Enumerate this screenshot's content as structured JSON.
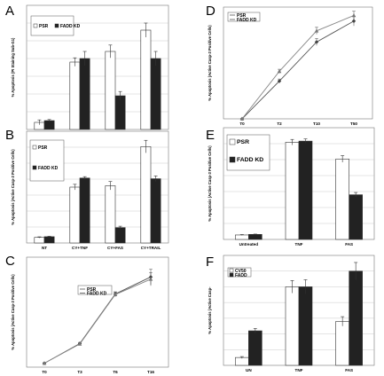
{
  "chart_data": [
    {
      "panel": "A",
      "type": "bar",
      "title": "",
      "ylabel": "% Apoptosis (PI Staining Sub-G1)",
      "xlabel": "",
      "ylim": [
        0,
        35
      ],
      "yticks": [],
      "categories": [
        "NT",
        "CY+TNF",
        "CY+FAS",
        "CY+TRAIL"
      ],
      "series": [
        {
          "name": "PSR",
          "values": [
            2.0,
            19.0,
            22.0,
            28.0
          ],
          "errors": [
            0.7,
            1.2,
            1.8,
            2.0
          ],
          "color": "#ffffff"
        },
        {
          "name": "FADD KD",
          "values": [
            2.5,
            20.0,
            9.5,
            20.0
          ],
          "errors": [
            0.3,
            2.0,
            1.2,
            2.0
          ],
          "color": "#222222"
        }
      ],
      "grid": true,
      "legend": "top-left",
      "legend_entries": [
        "PSR",
        "FADD KD"
      ]
    },
    {
      "panel": "B",
      "type": "bar",
      "title": "",
      "ylabel": "% Apoptosis (Active Casp-3 Positive Cells)",
      "xlabel": "",
      "ylim": [
        0,
        80
      ],
      "yticks": [],
      "categories": [
        "NT",
        "CY+TNF",
        "CY+FAS",
        "CY+TRAIL"
      ],
      "series": [
        {
          "name": "PSR",
          "values": [
            4,
            40,
            41,
            69
          ],
          "errors": [
            0.4,
            2.0,
            3.0,
            4.5
          ],
          "color": "#ffffff"
        },
        {
          "name": "FADD KD",
          "values": [
            4.5,
            46.5,
            11,
            46
          ],
          "errors": [
            0.3,
            1.0,
            1.0,
            2.0
          ],
          "color": "#222222"
        }
      ],
      "grid": true,
      "legend": "top-left",
      "legend_entries": [
        "PSR",
        "FADD KD"
      ]
    },
    {
      "panel": "C",
      "type": "line",
      "title": "",
      "ylabel": "% Apoptosis (Active Casp-3 Positive Cells)",
      "xlabel": "",
      "ylim": [
        0,
        100
      ],
      "yticks": [],
      "categories": [
        "T0",
        "T3",
        "T6",
        "T16"
      ],
      "series": [
        {
          "name": "PSR",
          "values": [
            3.5,
            21.5,
            66.5,
            82
          ],
          "errors": [
            0.5,
            1.0,
            2.0,
            7.0
          ],
          "marker": "diamond"
        },
        {
          "name": "FADD KD",
          "values": [
            3.5,
            21.0,
            66.0,
            80
          ],
          "errors": [
            0.4,
            0.8,
            2.0,
            6.0
          ],
          "marker": "triangle"
        }
      ],
      "grid": false,
      "legend": "top-center",
      "legend_entries": [
        "PSR",
        "FADD KD"
      ]
    },
    {
      "panel": "D",
      "type": "line",
      "title": "",
      "ylabel": "% Apoptosis (Active Casp-3 Positive Cells)",
      "xlabel": "",
      "ylim": [
        0,
        80
      ],
      "yticks": [],
      "categories": [
        "T0",
        "T2",
        "T10",
        "T50"
      ],
      "series": [
        {
          "name": "PSR",
          "values": [
            0,
            27,
            55,
            70
          ],
          "errors": [
            0,
            1.5,
            2.5,
            3.5
          ],
          "marker": "diamond"
        },
        {
          "name": "FADD KD",
          "values": [
            0,
            34,
            63,
            74
          ],
          "errors": [
            0,
            1.5,
            2.5,
            3.0
          ],
          "marker": "triangle"
        }
      ],
      "grid": false,
      "legend": "top-left",
      "legend_entries": [
        "PSR",
        "FADD KD"
      ]
    },
    {
      "panel": "E",
      "type": "bar",
      "title": "",
      "ylabel": "% Apoptosis (Active Casp-3 Positive Cells)",
      "xlabel": "",
      "ylim": [
        0,
        100
      ],
      "yticks": [],
      "categories": [
        "Untreated",
        "TNF",
        "FAS"
      ],
      "series": [
        {
          "name": "PSR",
          "values": [
            4,
            87,
            72
          ],
          "errors": [
            0.4,
            2.5,
            3.0
          ],
          "color": "#ffffff"
        },
        {
          "name": "FADD KD",
          "values": [
            4.5,
            88,
            40
          ],
          "errors": [
            0.3,
            2.0,
            2.0
          ],
          "color": "#222222"
        }
      ],
      "grid": true,
      "legend": "top-left",
      "legend_entries": [
        "PSR",
        "FADD KD"
      ]
    },
    {
      "panel": "F",
      "type": "bar",
      "title": "",
      "ylabel": "% Apoptosis (Active Casp-",
      "xlabel": "",
      "ylim": [
        0,
        70
      ],
      "yticks": [],
      "categories": [
        "UN",
        "TNF",
        "FAS"
      ],
      "series": [
        {
          "name": "CV50",
          "values": [
            5,
            50,
            28
          ],
          "errors": [
            0.6,
            4.0,
            3.0
          ],
          "color": "#ffffff"
        },
        {
          "name": "FADD",
          "values": [
            22,
            50,
            60
          ],
          "errors": [
            1.5,
            4.5,
            5.5
          ],
          "color": "#222222"
        }
      ],
      "grid": true,
      "legend": "top-left",
      "legend_entries": [
        "CV50",
        "FADD"
      ]
    }
  ]
}
